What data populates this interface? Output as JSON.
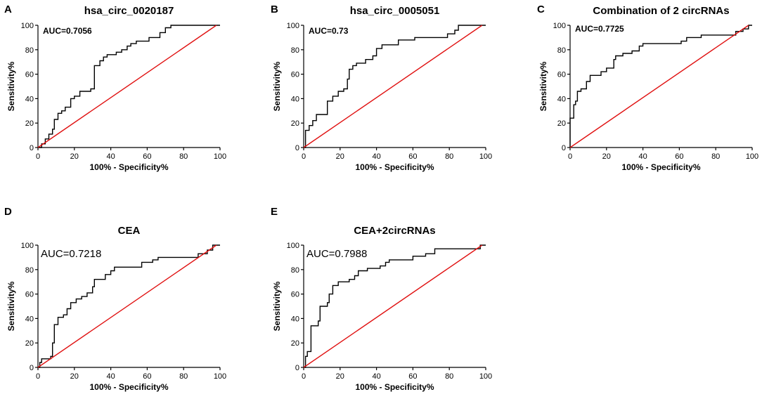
{
  "figure": {
    "x_ticks": [
      "0",
      "20",
      "40",
      "60",
      "80",
      "100"
    ],
    "y_ticks": [
      "0",
      "20",
      "40",
      "60",
      "80",
      "100"
    ],
    "xlabel": "100% - Specificity%",
    "ylabel": "Sensitivity%",
    "roc_color": "#000000",
    "reference_color": "#e01010"
  },
  "chart_data": [
    {
      "type": "line",
      "panel": "A",
      "title": "hsa_circ_0020187",
      "annotation": "AUC=0.7056",
      "xlabel": "100% - Specificity%",
      "ylabel": "Sensitivity%",
      "xlim": [
        0,
        100
      ],
      "ylim": [
        0,
        100
      ],
      "series": [
        {
          "name": "ROC",
          "points": [
            [
              0,
              0
            ],
            [
              2,
              0
            ],
            [
              2,
              3
            ],
            [
              4,
              3
            ],
            [
              4,
              7
            ],
            [
              6,
              7
            ],
            [
              6,
              11
            ],
            [
              8,
              11
            ],
            [
              8,
              15
            ],
            [
              9,
              15
            ],
            [
              9,
              23
            ],
            [
              11,
              23
            ],
            [
              11,
              28
            ],
            [
              13,
              28
            ],
            [
              13,
              30
            ],
            [
              15,
              30
            ],
            [
              15,
              33
            ],
            [
              18,
              33
            ],
            [
              18,
              40
            ],
            [
              20,
              40
            ],
            [
              20,
              42
            ],
            [
              23,
              42
            ],
            [
              23,
              46
            ],
            [
              29,
              46
            ],
            [
              29,
              48
            ],
            [
              31,
              48
            ],
            [
              31,
              67
            ],
            [
              34,
              67
            ],
            [
              34,
              71
            ],
            [
              36,
              71
            ],
            [
              36,
              74
            ],
            [
              38,
              74
            ],
            [
              38,
              76
            ],
            [
              43,
              76
            ],
            [
              43,
              78
            ],
            [
              46,
              78
            ],
            [
              46,
              80
            ],
            [
              49,
              80
            ],
            [
              49,
              83
            ],
            [
              51,
              83
            ],
            [
              51,
              85
            ],
            [
              54,
              85
            ],
            [
              54,
              87
            ],
            [
              61,
              87
            ],
            [
              61,
              90
            ],
            [
              67,
              90
            ],
            [
              67,
              94
            ],
            [
              70,
              94
            ],
            [
              70,
              98
            ],
            [
              73,
              98
            ],
            [
              73,
              100
            ],
            [
              100,
              100
            ]
          ]
        },
        {
          "name": "Reference",
          "points": [
            [
              0,
              0
            ],
            [
              98,
              100
            ]
          ]
        }
      ]
    },
    {
      "type": "line",
      "panel": "B",
      "title": "hsa_circ_0005051",
      "annotation": "AUC=0.73",
      "xlabel": "100% - Specificity%",
      "ylabel": "Sensitivity%",
      "xlim": [
        0,
        100
      ],
      "ylim": [
        0,
        100
      ],
      "series": [
        {
          "name": "ROC",
          "points": [
            [
              0,
              0
            ],
            [
              1,
              0
            ],
            [
              1,
              14
            ],
            [
              3,
              14
            ],
            [
              3,
              18
            ],
            [
              5,
              18
            ],
            [
              5,
              22
            ],
            [
              7,
              22
            ],
            [
              7,
              27
            ],
            [
              13,
              27
            ],
            [
              13,
              38
            ],
            [
              16,
              38
            ],
            [
              16,
              42
            ],
            [
              19,
              42
            ],
            [
              19,
              46
            ],
            [
              22,
              46
            ],
            [
              22,
              48
            ],
            [
              24,
              48
            ],
            [
              24,
              56
            ],
            [
              25,
              56
            ],
            [
              25,
              64
            ],
            [
              27,
              64
            ],
            [
              27,
              67
            ],
            [
              29,
              67
            ],
            [
              29,
              69
            ],
            [
              34,
              69
            ],
            [
              34,
              72
            ],
            [
              38,
              72
            ],
            [
              38,
              75
            ],
            [
              40,
              75
            ],
            [
              40,
              81
            ],
            [
              43,
              81
            ],
            [
              43,
              84
            ],
            [
              52,
              84
            ],
            [
              52,
              88
            ],
            [
              61,
              88
            ],
            [
              61,
              90
            ],
            [
              79,
              90
            ],
            [
              79,
              93
            ],
            [
              83,
              93
            ],
            [
              83,
              96
            ],
            [
              85,
              96
            ],
            [
              85,
              100
            ],
            [
              100,
              100
            ]
          ]
        },
        {
          "name": "Reference",
          "points": [
            [
              0,
              0
            ],
            [
              98,
              100
            ]
          ]
        }
      ]
    },
    {
      "type": "line",
      "panel": "C",
      "title": "Combination of 2 circRNAs",
      "annotation": "AUC=0.7725",
      "xlabel": "100% - Specificity%",
      "ylabel": "Sensitivity%",
      "xlim": [
        0,
        100
      ],
      "ylim": [
        0,
        100
      ],
      "series": [
        {
          "name": "ROC",
          "points": [
            [
              0,
              0
            ],
            [
              0,
              24
            ],
            [
              2,
              24
            ],
            [
              2,
              35
            ],
            [
              3,
              35
            ],
            [
              3,
              38
            ],
            [
              4,
              38
            ],
            [
              4,
              46
            ],
            [
              6,
              46
            ],
            [
              6,
              48
            ],
            [
              9,
              48
            ],
            [
              9,
              54
            ],
            [
              11,
              54
            ],
            [
              11,
              59
            ],
            [
              17,
              59
            ],
            [
              17,
              62
            ],
            [
              20,
              62
            ],
            [
              20,
              65
            ],
            [
              24,
              65
            ],
            [
              24,
              72
            ],
            [
              25,
              72
            ],
            [
              25,
              75
            ],
            [
              29,
              75
            ],
            [
              29,
              77
            ],
            [
              34,
              77
            ],
            [
              34,
              79
            ],
            [
              38,
              79
            ],
            [
              38,
              83
            ],
            [
              40,
              83
            ],
            [
              40,
              85
            ],
            [
              61,
              85
            ],
            [
              61,
              87
            ],
            [
              64,
              87
            ],
            [
              64,
              90
            ],
            [
              72,
              90
            ],
            [
              72,
              92
            ],
            [
              91,
              92
            ],
            [
              91,
              95
            ],
            [
              95,
              95
            ],
            [
              95,
              97
            ],
            [
              98,
              97
            ],
            [
              98,
              100
            ],
            [
              100,
              100
            ]
          ]
        },
        {
          "name": "Reference",
          "points": [
            [
              0,
              0
            ],
            [
              98,
              100
            ]
          ]
        }
      ]
    },
    {
      "type": "line",
      "panel": "D",
      "title": "CEA",
      "annotation": "AUC=0.7218",
      "xlabel": "100% - Specificity%",
      "ylabel": "Sensitivity%",
      "xlim": [
        0,
        100
      ],
      "ylim": [
        0,
        100
      ],
      "series": [
        {
          "name": "ROC",
          "points": [
            [
              0,
              0
            ],
            [
              1,
              0
            ],
            [
              1,
              4
            ],
            [
              2,
              4
            ],
            [
              2,
              7
            ],
            [
              7,
              7
            ],
            [
              7,
              9
            ],
            [
              8,
              9
            ],
            [
              8,
              20
            ],
            [
              9,
              20
            ],
            [
              9,
              35
            ],
            [
              11,
              35
            ],
            [
              11,
              41
            ],
            [
              14,
              41
            ],
            [
              14,
              43
            ],
            [
              16,
              43
            ],
            [
              16,
              48
            ],
            [
              18,
              48
            ],
            [
              18,
              53
            ],
            [
              21,
              53
            ],
            [
              21,
              56
            ],
            [
              24,
              56
            ],
            [
              24,
              58
            ],
            [
              27,
              58
            ],
            [
              27,
              61
            ],
            [
              30,
              61
            ],
            [
              30,
              66
            ],
            [
              31,
              66
            ],
            [
              31,
              72
            ],
            [
              37,
              72
            ],
            [
              37,
              76
            ],
            [
              40,
              76
            ],
            [
              40,
              79
            ],
            [
              42,
              79
            ],
            [
              42,
              82
            ],
            [
              57,
              82
            ],
            [
              57,
              86
            ],
            [
              63,
              86
            ],
            [
              63,
              88
            ],
            [
              66,
              88
            ],
            [
              66,
              90
            ],
            [
              88,
              90
            ],
            [
              88,
              93
            ],
            [
              93,
              93
            ],
            [
              93,
              96
            ],
            [
              96,
              96
            ],
            [
              96,
              100
            ],
            [
              100,
              100
            ]
          ]
        },
        {
          "name": "Reference",
          "points": [
            [
              0,
              0
            ],
            [
              98,
              100
            ]
          ]
        }
      ]
    },
    {
      "type": "line",
      "panel": "E",
      "title": "CEA+2circRNAs",
      "annotation": "AUC=0.7988",
      "xlabel": "100% - Specificity%",
      "ylabel": "Sensitivity%",
      "xlim": [
        0,
        100
      ],
      "ylim": [
        0,
        100
      ],
      "series": [
        {
          "name": "ROC",
          "points": [
            [
              0,
              0
            ],
            [
              1,
              0
            ],
            [
              1,
              9
            ],
            [
              2,
              9
            ],
            [
              2,
              13
            ],
            [
              4,
              13
            ],
            [
              4,
              34
            ],
            [
              8,
              34
            ],
            [
              8,
              38
            ],
            [
              9,
              38
            ],
            [
              9,
              50
            ],
            [
              13,
              50
            ],
            [
              13,
              53
            ],
            [
              14,
              53
            ],
            [
              14,
              60
            ],
            [
              16,
              60
            ],
            [
              16,
              67
            ],
            [
              19,
              67
            ],
            [
              19,
              70
            ],
            [
              25,
              70
            ],
            [
              25,
              72
            ],
            [
              28,
              72
            ],
            [
              28,
              75
            ],
            [
              30,
              75
            ],
            [
              30,
              79
            ],
            [
              35,
              79
            ],
            [
              35,
              81
            ],
            [
              42,
              81
            ],
            [
              42,
              83
            ],
            [
              45,
              83
            ],
            [
              45,
              86
            ],
            [
              47,
              86
            ],
            [
              47,
              88
            ],
            [
              60,
              88
            ],
            [
              60,
              91
            ],
            [
              67,
              91
            ],
            [
              67,
              93
            ],
            [
              72,
              93
            ],
            [
              72,
              97
            ],
            [
              97,
              97
            ],
            [
              97,
              100
            ],
            [
              100,
              100
            ]
          ]
        },
        {
          "name": "Reference",
          "points": [
            [
              0,
              0
            ],
            [
              98,
              100
            ]
          ]
        }
      ]
    }
  ]
}
